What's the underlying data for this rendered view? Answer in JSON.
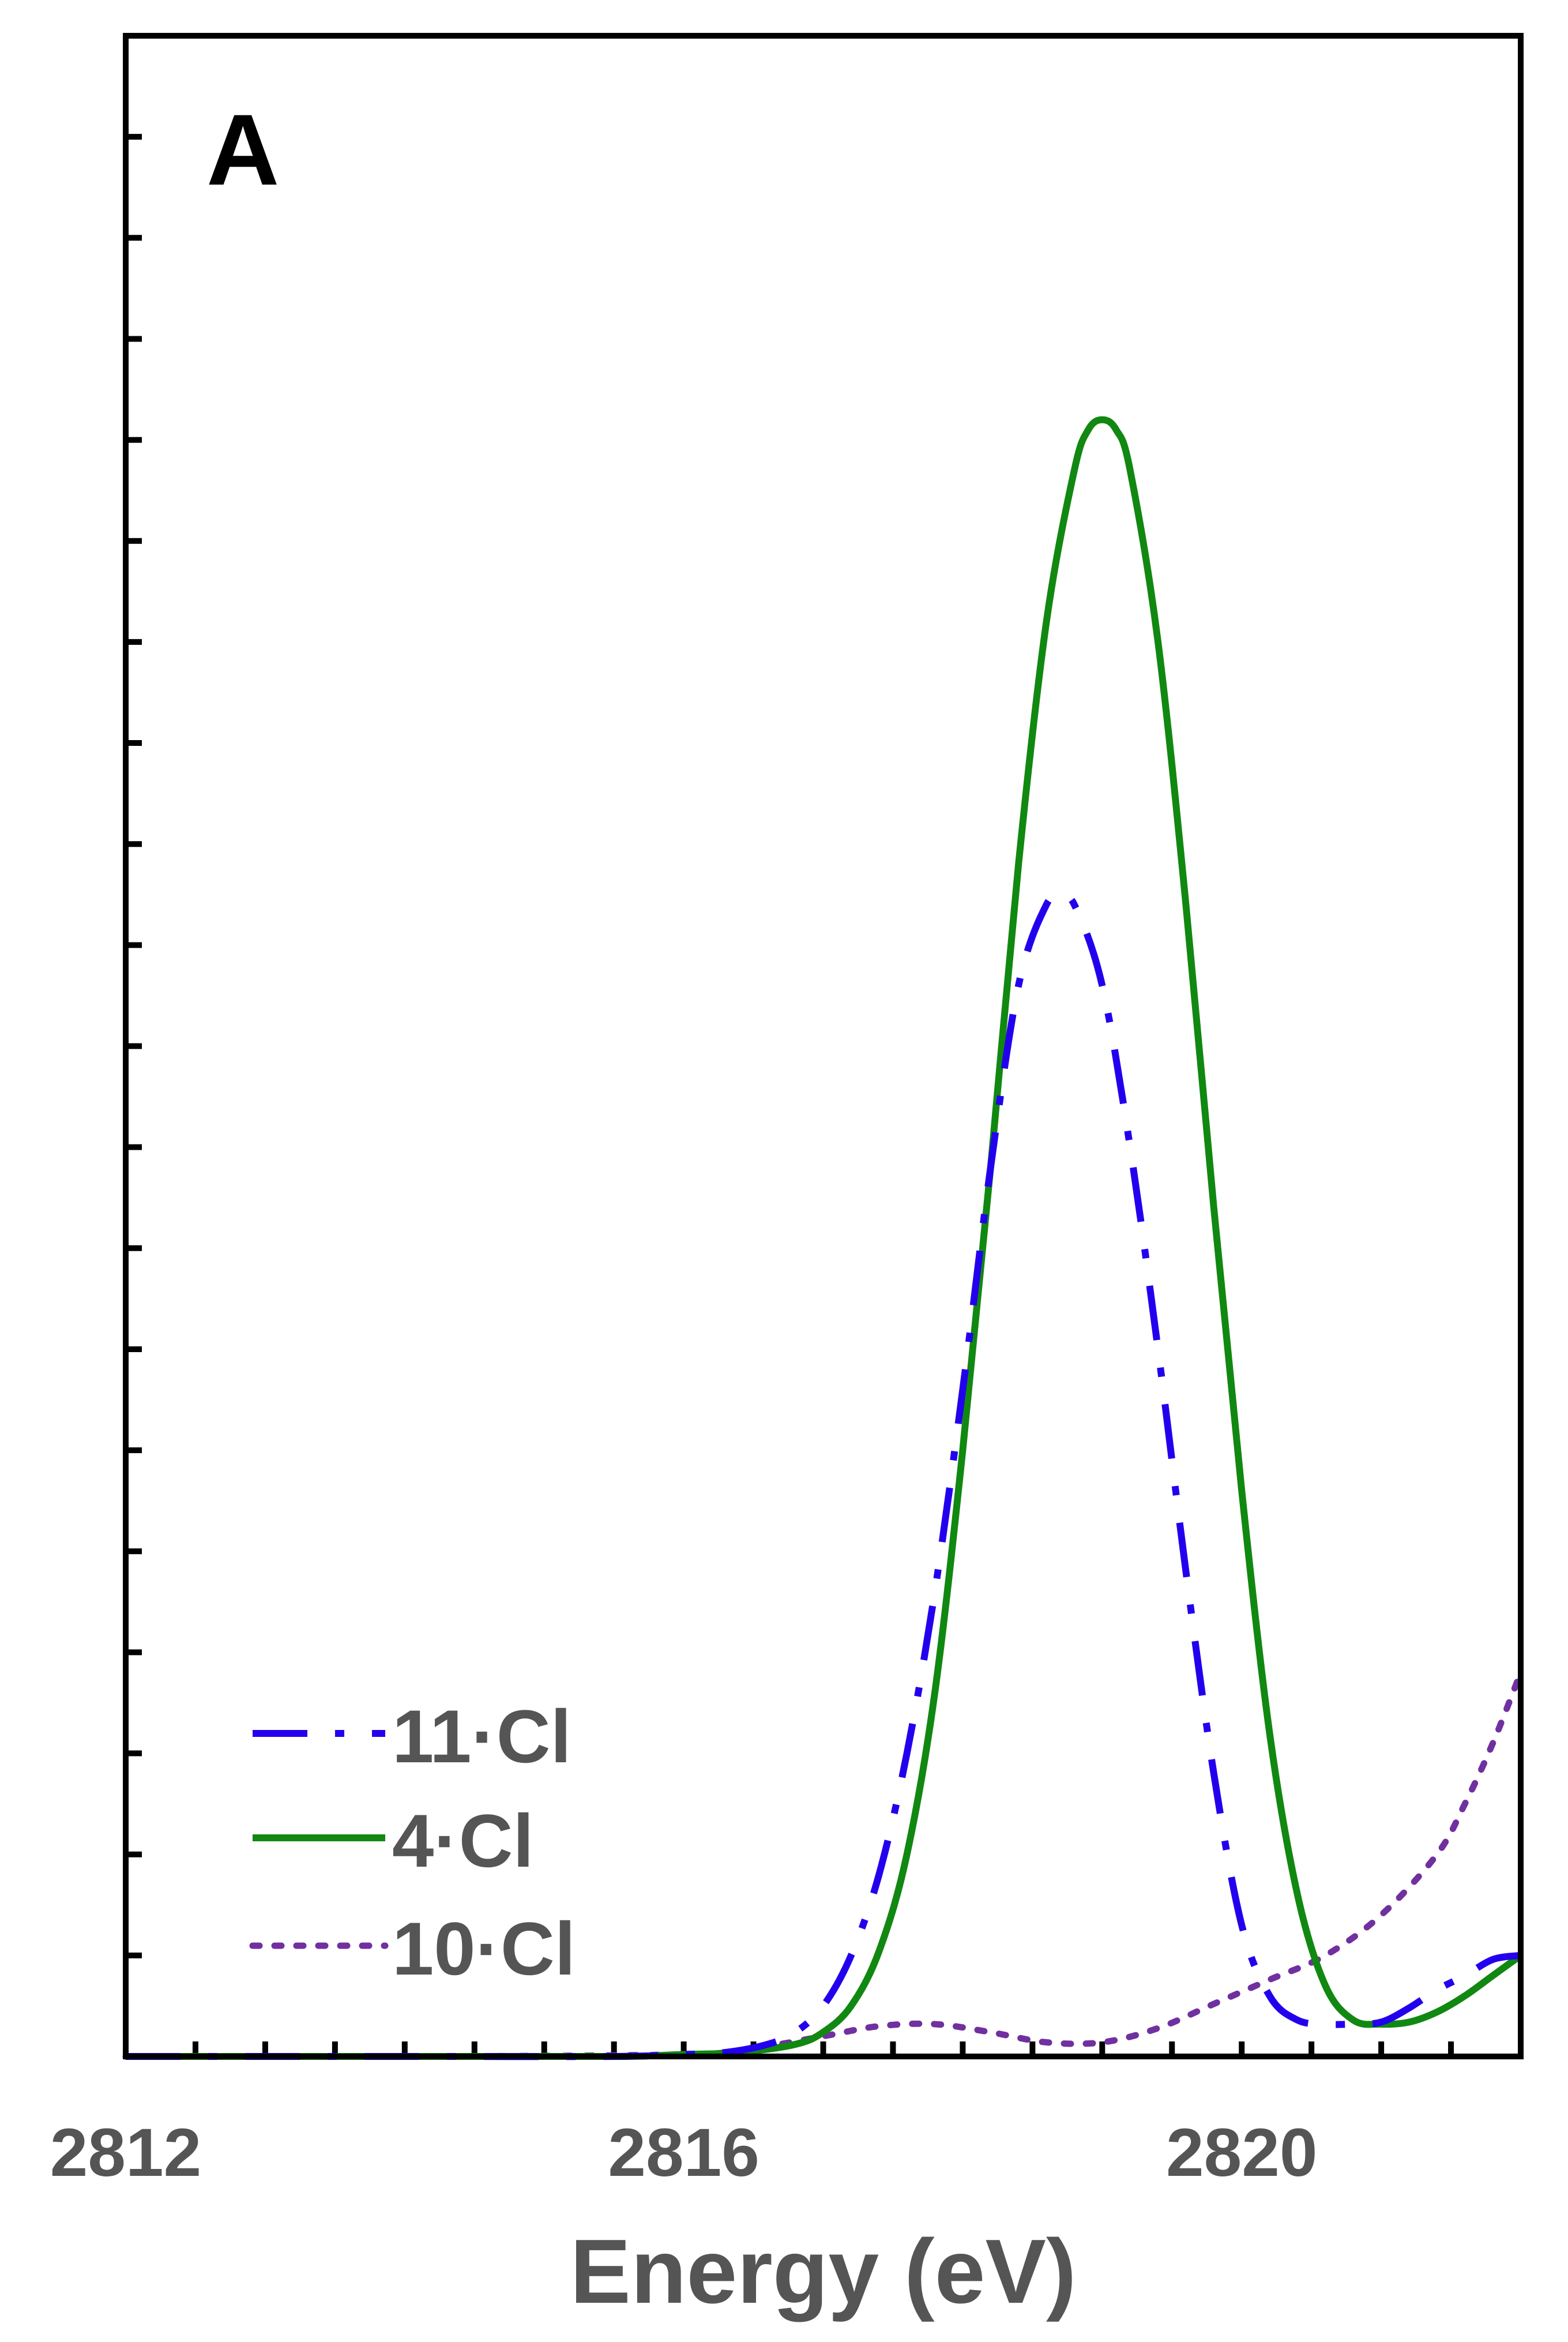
{
  "chart_data": {
    "type": "line",
    "panel_label": "A",
    "xlabel": "Energy (eV)",
    "ylabel": "",
    "xlim": [
      2812,
      2822
    ],
    "ylim": [
      0,
      1.0
    ],
    "x_ticks_major": [
      2812,
      2816,
      2820
    ],
    "x_tick_labels": [
      "2812",
      "2816",
      "2820"
    ],
    "x_ticks_minor_step": 0.5,
    "y_ticks_count": 20,
    "grid": false,
    "legend_position": "bottom-left",
    "colors": {
      "axis": "#000000",
      "text": "#555555"
    },
    "series": [
      {
        "name": "11·Cl",
        "color": "#2200ee",
        "line_style": "dash-dot",
        "x": [
          2812,
          2814,
          2815.5,
          2816,
          2816.3,
          2816.6,
          2816.8,
          2817.0,
          2817.2,
          2817.4,
          2817.6,
          2817.8,
          2818.0,
          2818.2,
          2818.4,
          2818.6,
          2818.7,
          2818.8,
          2819.0,
          2819.2,
          2819.4,
          2819.6,
          2819.8,
          2820.0,
          2820.2,
          2820.4,
          2820.6,
          2820.8,
          2821.0,
          2821.2,
          2821.4,
          2821.6,
          2821.8,
          2822.0
        ],
        "y": [
          0.0,
          0.0,
          0.0,
          0.001,
          0.002,
          0.006,
          0.012,
          0.025,
          0.05,
          0.09,
          0.15,
          0.23,
          0.33,
          0.44,
          0.53,
          0.57,
          0.572,
          0.57,
          0.53,
          0.45,
          0.35,
          0.24,
          0.14,
          0.065,
          0.03,
          0.018,
          0.016,
          0.016,
          0.017,
          0.024,
          0.033,
          0.04,
          0.048,
          0.05
        ]
      },
      {
        "name": "4·Cl",
        "color": "#118811",
        "line_style": "solid",
        "x": [
          2812,
          2814,
          2815.5,
          2816,
          2816.4,
          2816.8,
          2817.0,
          2817.2,
          2817.4,
          2817.6,
          2817.8,
          2818.0,
          2818.2,
          2818.4,
          2818.6,
          2818.8,
          2818.9,
          2819.0,
          2819.1,
          2819.2,
          2819.4,
          2819.6,
          2819.8,
          2820.0,
          2820.2,
          2820.4,
          2820.6,
          2820.8,
          2821.0,
          2821.2,
          2821.4,
          2821.6,
          2821.8,
          2822.0
        ],
        "y": [
          0.0,
          0.0,
          0.0,
          0.001,
          0.002,
          0.006,
          0.012,
          0.025,
          0.052,
          0.1,
          0.18,
          0.3,
          0.44,
          0.59,
          0.71,
          0.785,
          0.805,
          0.81,
          0.805,
          0.785,
          0.7,
          0.57,
          0.42,
          0.28,
          0.16,
          0.08,
          0.035,
          0.018,
          0.016,
          0.017,
          0.022,
          0.03,
          0.04,
          0.05
        ]
      },
      {
        "name": "10·Cl",
        "color": "#7030a0",
        "line_style": "dotted",
        "x": [
          2812,
          2814,
          2816,
          2816.5,
          2817.0,
          2817.4,
          2817.8,
          2818.2,
          2818.6,
          2819.0,
          2819.4,
          2819.8,
          2820.2,
          2820.6,
          2821.0,
          2821.4,
          2821.6,
          2821.8,
          2822.0
        ],
        "y": [
          0.0,
          0.0,
          0.001,
          0.004,
          0.01,
          0.015,
          0.016,
          0.012,
          0.007,
          0.007,
          0.014,
          0.026,
          0.038,
          0.05,
          0.07,
          0.1,
          0.125,
          0.155,
          0.19
        ]
      }
    ]
  }
}
